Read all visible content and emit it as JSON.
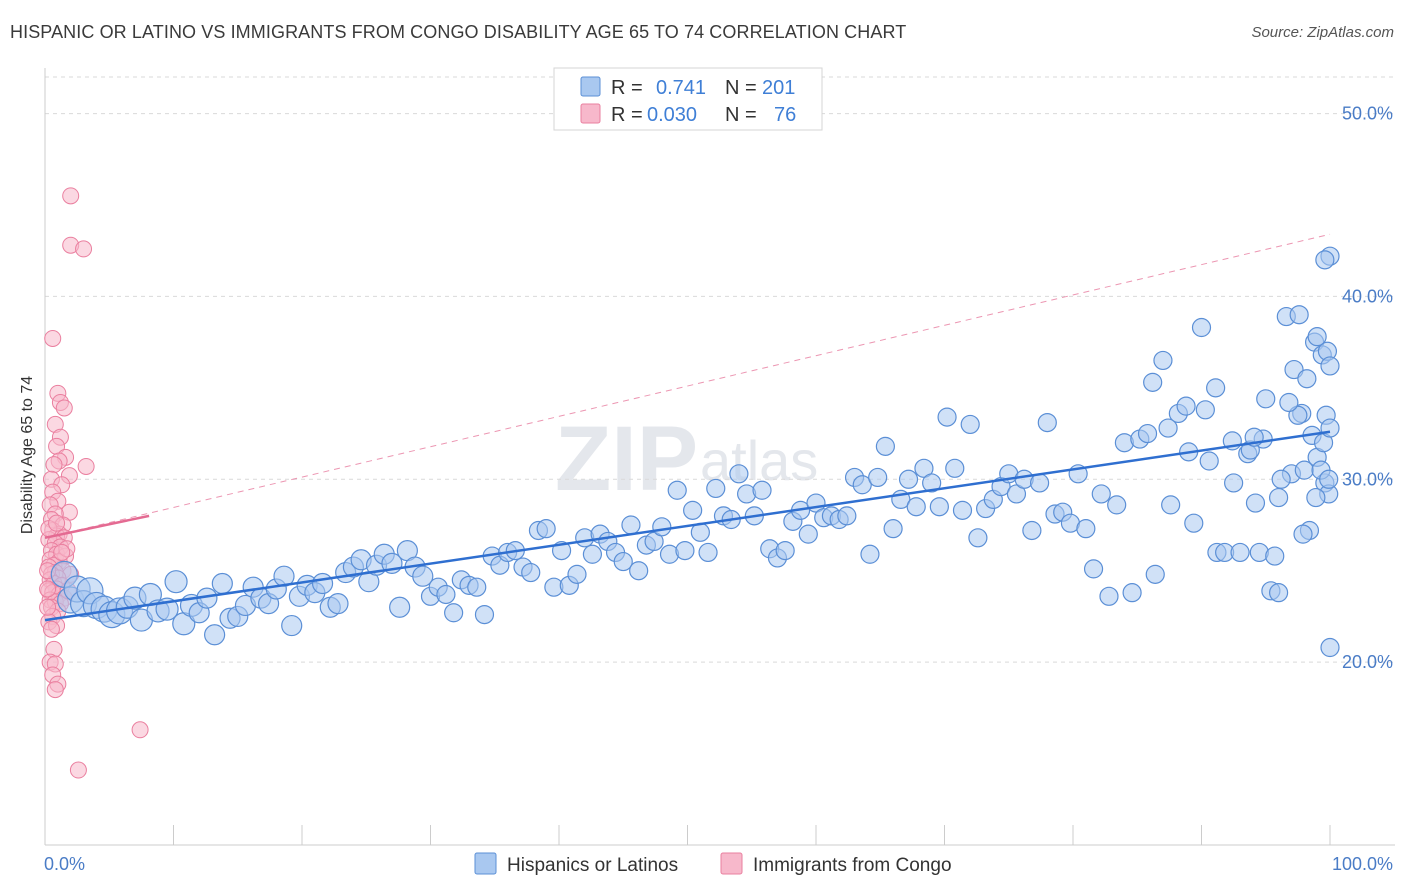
{
  "header": {
    "title": "HISPANIC OR LATINO VS IMMIGRANTS FROM CONGO DISABILITY AGE 65 TO 74 CORRELATION CHART",
    "source": "Source: ZipAtlas.com"
  },
  "watermark": {
    "zip": "ZIP",
    "atlas": "atlas"
  },
  "legend": {
    "r_label": "R =",
    "n_label": "N =",
    "rows": [
      {
        "r": "0.741",
        "n": "201"
      },
      {
        "r": "0.030",
        "n": "76"
      }
    ]
  },
  "bottom_legend": [
    "Hispanics or Latinos",
    "Immigrants from Congo"
  ],
  "colors": {
    "blue_fill": "#a9c8f0",
    "blue_stroke": "#5b8fd6",
    "blue_line": "#2f6fd0",
    "pink_fill": "#f7b8cb",
    "pink_stroke": "#ea7f9f",
    "pink_line": "#e46a92",
    "grid": "#d9d9d9",
    "axis": "#cccccc"
  },
  "chart_data": {
    "type": "scatter",
    "title": "HISPANIC OR LATINO VS IMMIGRANTS FROM CONGO DISABILITY AGE 65 TO 74 CORRELATION CHART",
    "xlabel": "",
    "ylabel": "Disability Age 65 to 74",
    "xlim": [
      0,
      100
    ],
    "ylim": [
      10,
      52
    ],
    "y_ticks": [
      20,
      30,
      40,
      50
    ],
    "y_tick_labels": [
      "20.0%",
      "30.0%",
      "40.0%",
      "50.0%"
    ],
    "x_tick_labels": [
      "0.0%",
      "100.0%"
    ],
    "grid": true,
    "series": [
      {
        "name": "Hispanics or Latinos",
        "r": 0.741,
        "n": 201,
        "trend": {
          "x": [
            0,
            100
          ],
          "y": [
            22.3,
            32.6
          ]
        },
        "points": [
          [
            1.5,
            24.8
          ],
          [
            2.0,
            23.4
          ],
          [
            2.5,
            24.0
          ],
          [
            3.0,
            23.2
          ],
          [
            3.5,
            23.9
          ],
          [
            4.0,
            23.1
          ],
          [
            4.6,
            22.9
          ],
          [
            5.2,
            22.6
          ],
          [
            5.8,
            22.8
          ],
          [
            6.4,
            23.0
          ],
          [
            7.0,
            23.5
          ],
          [
            7.5,
            22.3
          ],
          [
            8.2,
            23.7
          ],
          [
            8.8,
            22.8
          ],
          [
            9.5,
            22.9
          ],
          [
            10.2,
            24.4
          ],
          [
            10.8,
            22.1
          ],
          [
            11.4,
            23.1
          ],
          [
            12.0,
            22.7
          ],
          [
            12.6,
            23.5
          ],
          [
            13.2,
            21.5
          ],
          [
            13.8,
            24.3
          ],
          [
            14.4,
            22.4
          ],
          [
            15.0,
            22.5
          ],
          [
            15.6,
            23.1
          ],
          [
            16.2,
            24.1
          ],
          [
            16.8,
            23.5
          ],
          [
            17.4,
            23.2
          ],
          [
            18.0,
            24.0
          ],
          [
            18.6,
            24.7
          ],
          [
            19.2,
            22.0
          ],
          [
            19.8,
            23.6
          ],
          [
            20.4,
            24.2
          ],
          [
            21.0,
            23.8
          ],
          [
            21.6,
            24.3
          ],
          [
            22.2,
            23.0
          ],
          [
            22.8,
            23.2
          ],
          [
            23.4,
            24.9
          ],
          [
            24.0,
            25.2
          ],
          [
            24.6,
            25.6
          ],
          [
            25.2,
            24.4
          ],
          [
            25.8,
            25.3
          ],
          [
            26.4,
            25.9
          ],
          [
            27.0,
            25.4
          ],
          [
            27.6,
            23.0
          ],
          [
            28.2,
            26.1
          ],
          [
            28.8,
            25.2
          ],
          [
            29.4,
            24.7
          ],
          [
            30.0,
            23.6
          ],
          [
            30.6,
            24.1
          ],
          [
            31.2,
            23.7
          ],
          [
            31.8,
            22.7
          ],
          [
            32.4,
            24.5
          ],
          [
            33.0,
            24.2
          ],
          [
            33.6,
            24.1
          ],
          [
            34.2,
            22.6
          ],
          [
            34.8,
            25.8
          ],
          [
            35.4,
            25.3
          ],
          [
            36.0,
            26.0
          ],
          [
            36.6,
            26.1
          ],
          [
            37.2,
            25.2
          ],
          [
            37.8,
            24.9
          ],
          [
            38.4,
            27.2
          ],
          [
            39.0,
            27.3
          ],
          [
            39.6,
            24.1
          ],
          [
            40.2,
            26.1
          ],
          [
            40.8,
            24.2
          ],
          [
            41.4,
            24.8
          ],
          [
            42.0,
            26.8
          ],
          [
            42.6,
            25.9
          ],
          [
            43.2,
            27.0
          ],
          [
            43.8,
            26.6
          ],
          [
            44.4,
            26.0
          ],
          [
            45.0,
            25.5
          ],
          [
            45.6,
            27.5
          ],
          [
            46.2,
            25.0
          ],
          [
            46.8,
            26.4
          ],
          [
            47.4,
            26.6
          ],
          [
            48.0,
            27.4
          ],
          [
            48.6,
            25.9
          ],
          [
            49.2,
            29.4
          ],
          [
            49.8,
            26.1
          ],
          [
            50.4,
            28.3
          ],
          [
            51.0,
            27.1
          ],
          [
            51.6,
            26.0
          ],
          [
            52.2,
            29.5
          ],
          [
            52.8,
            28.0
          ],
          [
            53.4,
            27.8
          ],
          [
            54.0,
            30.3
          ],
          [
            54.6,
            29.2
          ],
          [
            55.2,
            28.0
          ],
          [
            55.8,
            29.4
          ],
          [
            56.4,
            26.2
          ],
          [
            57.0,
            25.7
          ],
          [
            57.6,
            26.1
          ],
          [
            58.2,
            27.7
          ],
          [
            58.8,
            28.3
          ],
          [
            59.4,
            27.0
          ],
          [
            60.0,
            28.7
          ],
          [
            60.6,
            27.9
          ],
          [
            61.2,
            28.0
          ],
          [
            61.8,
            27.8
          ],
          [
            62.4,
            28.0
          ],
          [
            63.0,
            30.1
          ],
          [
            63.6,
            29.7
          ],
          [
            64.2,
            25.9
          ],
          [
            64.8,
            30.1
          ],
          [
            65.4,
            31.8
          ],
          [
            66.0,
            27.3
          ],
          [
            66.6,
            28.9
          ],
          [
            67.2,
            30.0
          ],
          [
            67.8,
            28.5
          ],
          [
            68.4,
            30.6
          ],
          [
            69.0,
            29.8
          ],
          [
            69.6,
            28.5
          ],
          [
            70.2,
            33.4
          ],
          [
            70.8,
            30.6
          ],
          [
            71.4,
            28.3
          ],
          [
            72.0,
            33.0
          ],
          [
            72.6,
            26.8
          ],
          [
            73.2,
            28.4
          ],
          [
            73.8,
            28.9
          ],
          [
            74.4,
            29.6
          ],
          [
            75.0,
            30.3
          ],
          [
            75.6,
            29.2
          ],
          [
            76.2,
            30.0
          ],
          [
            76.8,
            27.2
          ],
          [
            77.4,
            29.8
          ],
          [
            78.0,
            33.1
          ],
          [
            78.6,
            28.1
          ],
          [
            79.2,
            28.2
          ],
          [
            79.8,
            27.6
          ],
          [
            80.4,
            30.3
          ],
          [
            81.0,
            27.3
          ],
          [
            81.6,
            25.1
          ],
          [
            82.2,
            29.2
          ],
          [
            82.8,
            23.6
          ],
          [
            83.4,
            28.6
          ],
          [
            84.0,
            32.0
          ],
          [
            84.6,
            23.8
          ],
          [
            85.2,
            32.2
          ],
          [
            85.8,
            32.5
          ],
          [
            86.4,
            24.8
          ],
          [
            87.0,
            36.5
          ],
          [
            87.6,
            28.6
          ],
          [
            88.2,
            33.6
          ],
          [
            88.8,
            34.0
          ],
          [
            89.4,
            27.6
          ],
          [
            90.0,
            38.3
          ],
          [
            90.6,
            31.0
          ],
          [
            91.2,
            26.0
          ],
          [
            91.8,
            26.0
          ],
          [
            92.4,
            32.1
          ],
          [
            93.0,
            26.0
          ],
          [
            93.6,
            31.4
          ],
          [
            94.2,
            28.7
          ],
          [
            94.8,
            32.2
          ],
          [
            95.4,
            23.9
          ],
          [
            96.0,
            23.8
          ],
          [
            96.6,
            38.9
          ],
          [
            97.2,
            36.0
          ],
          [
            97.8,
            33.6
          ],
          [
            98.4,
            27.2
          ],
          [
            99.0,
            31.2
          ],
          [
            99.6,
            29.8
          ],
          [
            100.0,
            20.8
          ],
          [
            94.5,
            26.0
          ],
          [
            96.0,
            29.0
          ],
          [
            97.0,
            30.3
          ],
          [
            98.0,
            30.5
          ],
          [
            98.6,
            32.4
          ],
          [
            99.3,
            30.5
          ],
          [
            99.9,
            29.2
          ],
          [
            86.2,
            35.3
          ],
          [
            87.4,
            32.8
          ],
          [
            89.0,
            31.5
          ],
          [
            90.3,
            33.8
          ],
          [
            91.1,
            35.0
          ],
          [
            92.5,
            29.8
          ],
          [
            93.8,
            31.6
          ],
          [
            95.0,
            34.4
          ],
          [
            96.2,
            30.0
          ],
          [
            97.5,
            33.5
          ],
          [
            98.8,
            37.5
          ],
          [
            99.4,
            36.8
          ],
          [
            99.8,
            37.0
          ],
          [
            100.0,
            36.2
          ],
          [
            100.0,
            42.2
          ],
          [
            99.6,
            42.0
          ],
          [
            99.0,
            37.8
          ],
          [
            97.6,
            39.0
          ],
          [
            98.2,
            35.5
          ],
          [
            99.7,
            33.5
          ],
          [
            99.5,
            32.0
          ],
          [
            99.9,
            30.0
          ],
          [
            100.0,
            32.8
          ],
          [
            98.9,
            29.0
          ],
          [
            97.9,
            27.0
          ],
          [
            96.8,
            34.2
          ],
          [
            95.7,
            25.8
          ],
          [
            94.1,
            32.3
          ]
        ]
      },
      {
        "name": "Immigrants from Congo",
        "r": 0.03,
        "n": 76,
        "trend": {
          "x": [
            0,
            8.1
          ],
          "y": [
            26.8,
            28.0
          ]
        },
        "trend_extension": {
          "x": [
            0,
            100
          ],
          "y": [
            26.8,
            43.4
          ]
        },
        "points": [
          [
            2.0,
            45.5
          ],
          [
            2.0,
            42.8
          ],
          [
            3.0,
            42.6
          ],
          [
            0.6,
            37.7
          ],
          [
            1.0,
            34.7
          ],
          [
            1.2,
            34.2
          ],
          [
            1.5,
            33.9
          ],
          [
            0.8,
            33.0
          ],
          [
            1.2,
            32.3
          ],
          [
            0.9,
            31.8
          ],
          [
            1.6,
            31.2
          ],
          [
            1.1,
            31.0
          ],
          [
            0.7,
            30.8
          ],
          [
            3.2,
            30.7
          ],
          [
            1.9,
            30.2
          ],
          [
            0.5,
            30.0
          ],
          [
            1.3,
            29.7
          ],
          [
            0.6,
            29.3
          ],
          [
            1.0,
            28.8
          ],
          [
            0.4,
            28.6
          ],
          [
            1.9,
            28.2
          ],
          [
            0.8,
            28.1
          ],
          [
            0.5,
            27.8
          ],
          [
            1.4,
            27.5
          ],
          [
            0.6,
            27.2
          ],
          [
            1.1,
            27.0
          ],
          [
            0.9,
            26.9
          ],
          [
            1.5,
            26.8
          ],
          [
            0.3,
            26.7
          ],
          [
            0.8,
            26.5
          ],
          [
            1.2,
            26.3
          ],
          [
            0.5,
            26.1
          ],
          [
            0.9,
            25.9
          ],
          [
            1.6,
            25.8
          ],
          [
            0.4,
            25.6
          ],
          [
            1.1,
            25.5
          ],
          [
            0.7,
            25.3
          ],
          [
            0.3,
            25.2
          ],
          [
            1.4,
            25.0
          ],
          [
            0.8,
            24.9
          ],
          [
            0.5,
            24.8
          ],
          [
            2.0,
            24.8
          ],
          [
            1.0,
            24.6
          ],
          [
            0.4,
            24.5
          ],
          [
            0.7,
            24.3
          ],
          [
            1.3,
            24.2
          ],
          [
            0.9,
            24.0
          ],
          [
            0.3,
            23.9
          ],
          [
            0.6,
            23.8
          ],
          [
            1.1,
            23.7
          ],
          [
            1.5,
            23.5
          ],
          [
            0.4,
            23.4
          ],
          [
            0.8,
            23.3
          ],
          [
            1.2,
            23.2
          ],
          [
            0.5,
            23.0
          ],
          [
            1.0,
            22.8
          ],
          [
            0.6,
            22.5
          ],
          [
            0.3,
            22.2
          ],
          [
            0.9,
            22.0
          ],
          [
            0.5,
            21.8
          ],
          [
            0.7,
            20.7
          ],
          [
            0.4,
            20.0
          ],
          [
            0.8,
            19.9
          ],
          [
            0.6,
            19.3
          ],
          [
            1.0,
            18.8
          ],
          [
            0.8,
            18.5
          ],
          [
            7.4,
            16.3
          ],
          [
            2.6,
            14.1
          ],
          [
            0.3,
            27.3
          ],
          [
            1.7,
            26.2
          ],
          [
            0.2,
            25.0
          ],
          [
            0.2,
            24.0
          ],
          [
            0.2,
            23.0
          ],
          [
            1.8,
            23.9
          ],
          [
            0.9,
            27.6
          ],
          [
            1.3,
            26.0
          ]
        ]
      }
    ]
  }
}
